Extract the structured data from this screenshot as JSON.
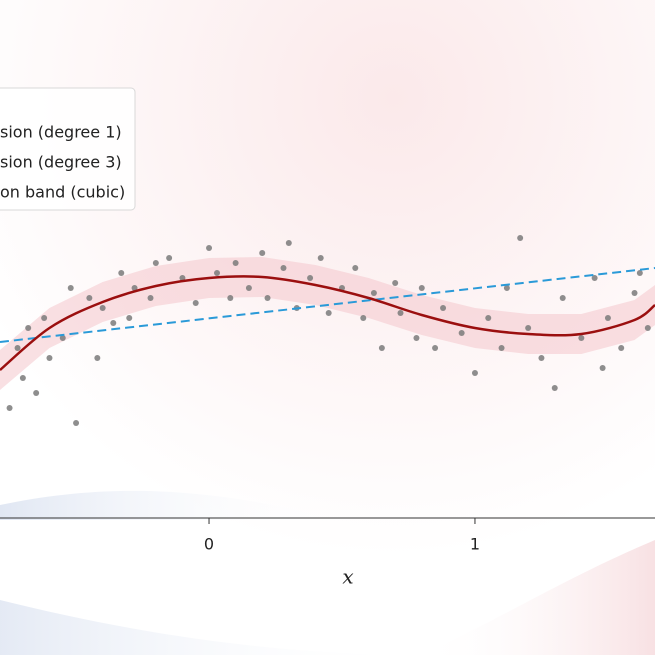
{
  "chart_data": {
    "type": "regression",
    "xlabel": "x",
    "xlim": [
      -0.786,
      1.677
    ],
    "xticks": [
      0,
      1
    ],
    "ylim": [
      -2,
      3
    ],
    "points": {
      "color": "#7a7a7a",
      "x": [
        -0.75,
        -0.72,
        -0.7,
        -0.68,
        -0.65,
        -0.62,
        -0.6,
        -0.55,
        -0.52,
        -0.5,
        -0.45,
        -0.42,
        -0.4,
        -0.36,
        -0.33,
        -0.3,
        -0.28,
        -0.22,
        -0.2,
        -0.15,
        -0.1,
        -0.05,
        0.0,
        0.03,
        0.08,
        0.1,
        0.15,
        0.2,
        0.22,
        0.28,
        0.3,
        0.33,
        0.38,
        0.42,
        0.45,
        0.5,
        0.55,
        0.58,
        0.62,
        0.65,
        0.7,
        0.72,
        0.78,
        0.8,
        0.85,
        0.88,
        0.95,
        1.0,
        1.05,
        1.1,
        1.12,
        1.17,
        1.2,
        1.25,
        1.3,
        1.33,
        1.4,
        1.45,
        1.48,
        1.5,
        1.55,
        1.6,
        1.62,
        1.65
      ],
      "y": [
        -0.9,
        -0.3,
        -0.6,
        -0.1,
        -0.75,
        0.0,
        -0.4,
        -0.2,
        0.3,
        -1.05,
        0.2,
        -0.4,
        0.1,
        -0.05,
        0.45,
        0.0,
        0.3,
        0.2,
        0.55,
        0.6,
        0.4,
        0.15,
        0.7,
        0.45,
        0.2,
        0.55,
        0.3,
        0.65,
        0.2,
        0.5,
        0.75,
        0.1,
        0.4,
        0.6,
        0.05,
        0.3,
        0.5,
        0.0,
        0.25,
        -0.3,
        0.35,
        0.05,
        -0.2,
        0.3,
        -0.3,
        0.1,
        -0.15,
        -0.55,
        0.0,
        -0.3,
        0.3,
        0.8,
        -0.1,
        -0.4,
        -0.7,
        0.2,
        -0.2,
        0.4,
        -0.5,
        0.0,
        -0.3,
        0.25,
        0.45,
        -0.1
      ]
    },
    "band": {
      "name": "on band (cubic)",
      "color": "#f4c6cc",
      "x": [
        -0.786,
        -0.6,
        -0.4,
        -0.2,
        0,
        0.2,
        0.4,
        0.6,
        0.8,
        1.0,
        1.2,
        1.4,
        1.6,
        1.677
      ],
      "lower": [
        -0.72,
        -0.3,
        -0.04,
        0.12,
        0.2,
        0.21,
        0.13,
        0.0,
        -0.17,
        -0.3,
        -0.36,
        -0.36,
        -0.22,
        -0.07
      ],
      "upper": [
        -0.32,
        0.1,
        0.36,
        0.52,
        0.6,
        0.61,
        0.53,
        0.4,
        0.23,
        0.1,
        0.04,
        0.04,
        0.18,
        0.33
      ]
    },
    "series": [
      {
        "name": "sion (degree 1)",
        "color": "#2a9ad8",
        "dashed": true,
        "x": [
          -0.786,
          1.677
        ],
        "values": [
          -0.24,
          0.5
        ]
      },
      {
        "name": "sion (degree 3)",
        "color": "#9b0f0f",
        "dashed": false,
        "x": [
          -0.786,
          -0.6,
          -0.4,
          -0.2,
          0,
          0.2,
          0.4,
          0.6,
          0.8,
          1.0,
          1.2,
          1.4,
          1.6,
          1.677
        ],
        "values": [
          -0.52,
          -0.1,
          0.16,
          0.32,
          0.4,
          0.41,
          0.33,
          0.2,
          0.03,
          -0.1,
          -0.16,
          -0.16,
          -0.02,
          0.13
        ]
      }
    ]
  }
}
